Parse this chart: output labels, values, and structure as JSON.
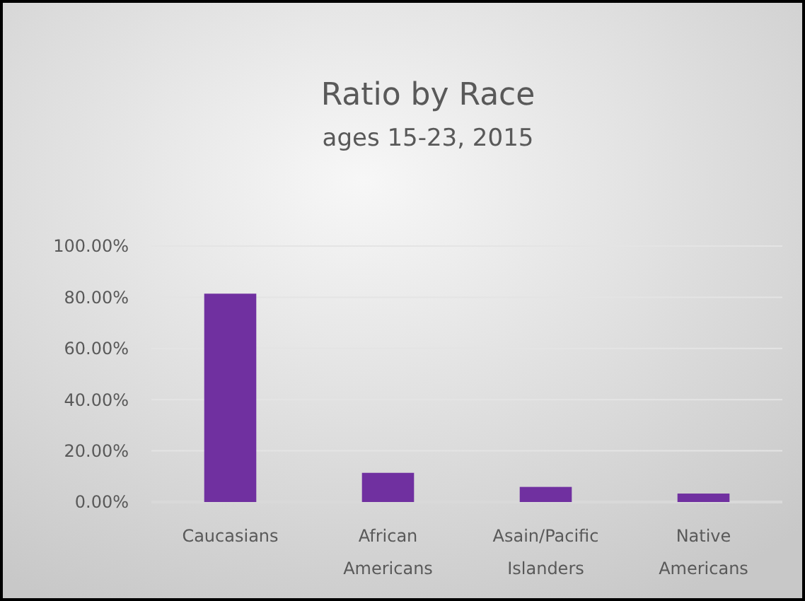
{
  "chart_data": {
    "type": "bar",
    "title": "Ratio by Race",
    "subtitle": "ages 15-23, 2015",
    "categories": [
      "Caucasians",
      "African Americans",
      "Asain/Pacific Islanders",
      "Native Americans"
    ],
    "values": [
      81.4,
      11.4,
      5.9,
      3.3
    ],
    "color": "#7030a0",
    "ylim": [
      0,
      100
    ],
    "yticks": [
      {
        "value": 0,
        "label": "0.00%"
      },
      {
        "value": 20,
        "label": "20.00%"
      },
      {
        "value": 40,
        "label": "40.00%"
      },
      {
        "value": 60,
        "label": "60.00%"
      },
      {
        "value": 80,
        "label": "80.00%"
      },
      {
        "value": 100,
        "label": "100.00%"
      }
    ],
    "grid": true
  }
}
